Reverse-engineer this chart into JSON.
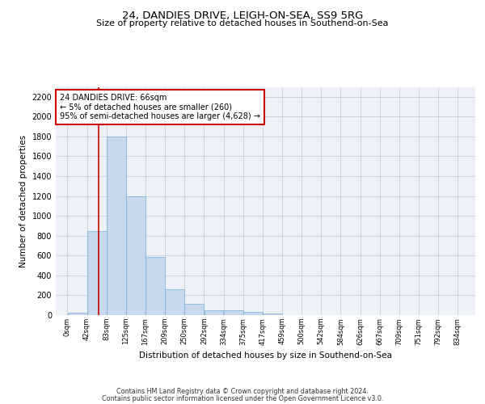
{
  "title": "24, DANDIES DRIVE, LEIGH-ON-SEA, SS9 5RG",
  "subtitle": "Size of property relative to detached houses in Southend-on-Sea",
  "xlabel": "Distribution of detached houses by size in Southend-on-Sea",
  "ylabel": "Number of detached properties",
  "bar_color": "#c9d9ed",
  "bar_edge_color": "#7aadd4",
  "grid_color": "#c8d0dc",
  "background_color": "#eef2f8",
  "bin_labels": [
    "0sqm",
    "42sqm",
    "83sqm",
    "125sqm",
    "167sqm",
    "209sqm",
    "250sqm",
    "292sqm",
    "334sqm",
    "375sqm",
    "417sqm",
    "459sqm",
    "500sqm",
    "542sqm",
    "584sqm",
    "626sqm",
    "667sqm",
    "709sqm",
    "751sqm",
    "792sqm",
    "834sqm"
  ],
  "bar_heights": [
    25,
    850,
    1800,
    1200,
    590,
    260,
    115,
    50,
    45,
    30,
    20,
    0,
    0,
    0,
    0,
    0,
    0,
    0,
    0,
    0,
    0
  ],
  "ylim": [
    0,
    2300
  ],
  "yticks": [
    0,
    200,
    400,
    600,
    800,
    1000,
    1200,
    1400,
    1600,
    1800,
    2000,
    2200
  ],
  "property_line_x": 66,
  "bin_width": 41.5,
  "annotation_text": "24 DANDIES DRIVE: 66sqm\n← 5% of detached houses are smaller (260)\n95% of semi-detached houses are larger (4,628) →",
  "footer_line1": "Contains HM Land Registry data © Crown copyright and database right 2024.",
  "footer_line2": "Contains public sector information licensed under the Open Government Licence v3.0.",
  "red_line_color": "#cc0000",
  "annotation_box_edge": "#cc0000",
  "fig_width": 6.0,
  "fig_height": 5.0,
  "dpi": 100
}
